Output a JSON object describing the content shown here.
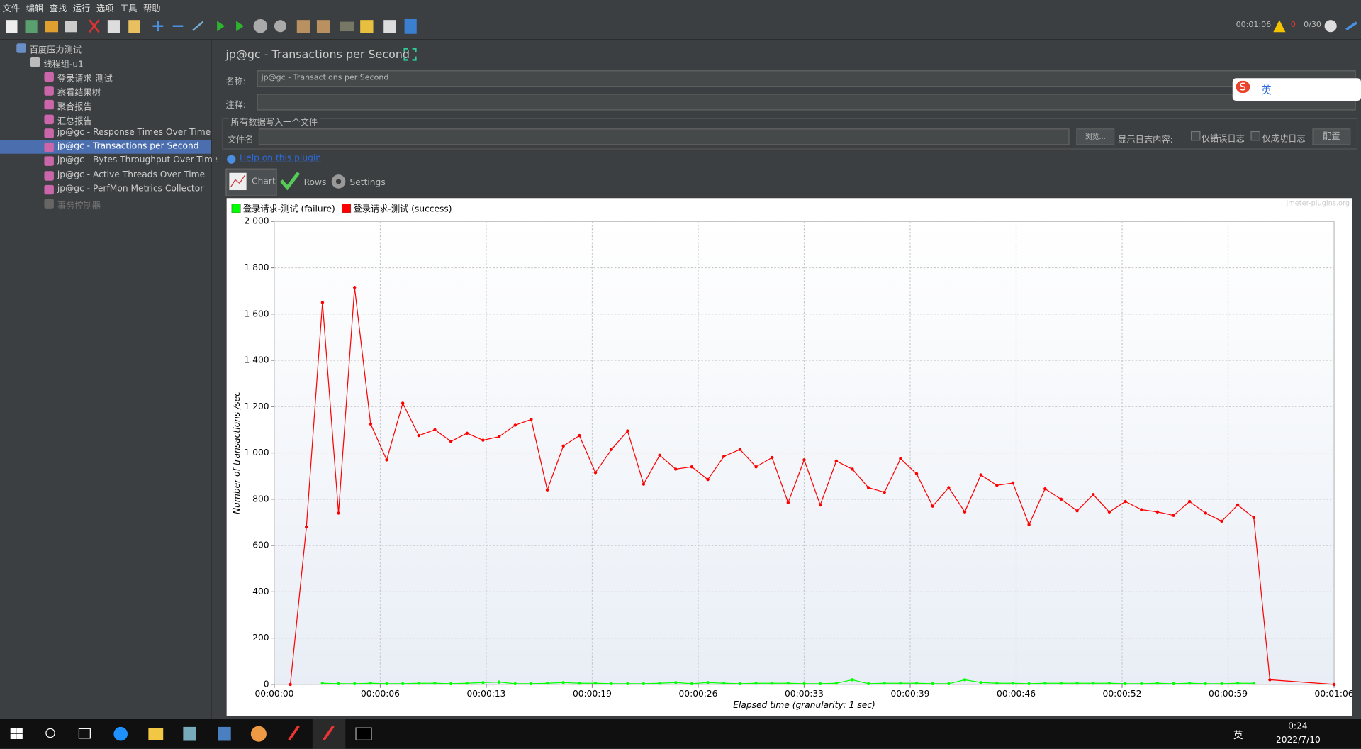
{
  "menu": [
    "文件",
    "编辑",
    "查找",
    "运行",
    "选项",
    "工具",
    "帮助"
  ],
  "status": {
    "time": "00:01:06",
    "errors": "0",
    "threads": "0/30"
  },
  "tree": {
    "label": "百度压力测试",
    "children": [
      {
        "label": "线程组-u1",
        "children": [
          {
            "label": "登录请求-测试"
          },
          {
            "label": "察看结果树"
          },
          {
            "label": "聚合报告"
          },
          {
            "label": "汇总报告"
          },
          {
            "label": "jp@gc - Response Times Over Time"
          },
          {
            "label": "jp@gc - Transactions per Second"
          },
          {
            "label": "jp@gc - Bytes Throughput Over Time"
          },
          {
            "label": "jp@gc - Active Threads Over Time"
          },
          {
            "label": "jp@gc - PerfMon Metrics Collector"
          },
          {
            "label": "事务控制器"
          }
        ]
      }
    ]
  },
  "panel": {
    "title": "jp@gc - Transactions per Second",
    "name_label": "名称:",
    "name_value": "jp@gc - Transactions per Second",
    "comment_label": "注释:",
    "file_section": "所有数据写入一个文件",
    "file_label": "文件名",
    "browse": "浏览...",
    "log_label": "显示日志内容:",
    "errors_only": "仅错误日志",
    "success_only": "仅成功日志",
    "configure": "配置",
    "help_link": "Help on this plugin",
    "tabs": [
      "Chart",
      "Rows",
      "Settings"
    ],
    "watermark": "jmeter-plugins.org"
  },
  "chart_data": {
    "type": "line",
    "y_label": "Number of transactions /sec",
    "x_label": "Elapsed time (granularity: 1 sec)",
    "grid": true,
    "legend": "top-left",
    "xlim": [
      0,
      66
    ],
    "ylim": [
      0,
      2000
    ],
    "xticks": [
      {
        "value": 0,
        "label": "00:00:00"
      },
      {
        "value": 6.6,
        "label": "00:00:06"
      },
      {
        "value": 13.2,
        "label": "00:00:13"
      },
      {
        "value": 19.8,
        "label": "00:00:19"
      },
      {
        "value": 26.4,
        "label": "00:00:26"
      },
      {
        "value": 33,
        "label": "00:00:33"
      },
      {
        "value": 39.6,
        "label": "00:00:39"
      },
      {
        "value": 46.2,
        "label": "00:00:46"
      },
      {
        "value": 52.8,
        "label": "00:00:52"
      },
      {
        "value": 59.4,
        "label": "00:00:59"
      },
      {
        "value": 66,
        "label": "00:01:06"
      }
    ],
    "yticks": [
      0,
      200,
      400,
      600,
      800,
      {
        "value": 1000,
        "label": "1 000"
      },
      {
        "value": 1200,
        "label": "1 200"
      },
      {
        "value": 1400,
        "label": "1 400"
      },
      {
        "value": 1600,
        "label": "1 600"
      },
      {
        "value": 1800,
        "label": "1 800"
      },
      {
        "value": 2000,
        "label": "2 000"
      }
    ],
    "x": [
      1,
      2,
      3,
      4,
      5,
      6,
      7,
      8,
      9,
      10,
      11,
      12,
      13,
      14,
      15,
      16,
      17,
      18,
      19,
      20,
      21,
      22,
      23,
      24,
      25,
      26,
      27,
      28,
      29,
      30,
      31,
      32,
      33,
      34,
      35,
      36,
      37,
      38,
      39,
      40,
      41,
      42,
      43,
      44,
      45,
      46,
      47,
      48,
      49,
      50,
      51,
      52,
      53,
      54,
      55,
      56,
      57,
      58,
      59,
      60,
      61,
      62,
      66
    ],
    "series": [
      {
        "name": "登录请求-测试 (failure)",
        "color": "#00ff00",
        "values": [
          null,
          null,
          5,
          3,
          3,
          5,
          3,
          3,
          5,
          5,
          3,
          5,
          8,
          10,
          3,
          3,
          5,
          8,
          5,
          5,
          3,
          3,
          3,
          5,
          8,
          3,
          8,
          5,
          3,
          5,
          5,
          5,
          3,
          3,
          5,
          20,
          3,
          5,
          5,
          5,
          3,
          3,
          20,
          8,
          5,
          5,
          3,
          5,
          5,
          5,
          5,
          5,
          3,
          3,
          5,
          3,
          5,
          3,
          3,
          5,
          5,
          null,
          null
        ]
      },
      {
        "name": "登录请求-测试 (success)",
        "color": "#ff0000",
        "values": [
          0,
          680,
          1650,
          740,
          1715,
          1125,
          970,
          1215,
          1075,
          1100,
          1050,
          1085,
          1055,
          1070,
          1120,
          1145,
          840,
          1030,
          1075,
          915,
          1015,
          1095,
          865,
          990,
          930,
          940,
          885,
          985,
          1015,
          940,
          980,
          785,
          970,
          775,
          965,
          930,
          850,
          830,
          975,
          910,
          770,
          850,
          745,
          905,
          860,
          870,
          690,
          845,
          800,
          750,
          820,
          745,
          790,
          755,
          745,
          730,
          790,
          740,
          705,
          775,
          720,
          20,
          0
        ]
      }
    ]
  },
  "taskbar": {
    "ime": "英",
    "time": "0:24",
    "date": "2022/7/10"
  }
}
